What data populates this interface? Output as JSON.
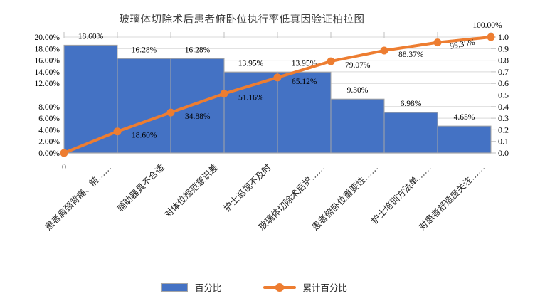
{
  "chart_data": {
    "type": "pareto",
    "title": "玻璃体切除术后患者俯卧位执行率低真因验证柏拉图",
    "categories": [
      "0",
      "患者肩颈背痛、前……",
      "辅助器具不合适",
      "对体位规范意识差",
      "护士巡视不及时",
      "玻璃体切除术后护……",
      "患者俯卧位重要性……",
      "护士培训方法单……",
      "对患者舒适度关注……"
    ],
    "series": [
      {
        "name": "百分比",
        "type": "bar",
        "color": "#4472C4",
        "values": [
          18.6,
          16.28,
          16.28,
          13.95,
          13.95,
          9.3,
          6.98,
          4.65
        ],
        "labels": [
          "18.60%",
          "16.28%",
          "16.28%",
          "13.95%",
          "13.95%",
          "9.30%",
          "6.98%",
          "4.65%"
        ]
      },
      {
        "name": "累计百分比",
        "type": "line",
        "color": "#ED7D31",
        "values": [
          0.0,
          18.6,
          34.88,
          51.16,
          65.12,
          79.07,
          88.37,
          95.35,
          100.0
        ],
        "labels": [
          "",
          "18.60%",
          "34.88%",
          "51.16%",
          "65.12%",
          "79.07%",
          "88.37%",
          "95.35%",
          "100.00%"
        ]
      }
    ],
    "left_axis": {
      "min": 0,
      "max": 20,
      "tick_labels": [
        "20.00%",
        "18.00%",
        "16.00%",
        "14.00%",
        "12.00%",
        "",
        "8.00%",
        "6.00%",
        "4.00%",
        "2.00%",
        "0.00%"
      ]
    },
    "right_axis": {
      "min": 0.0,
      "max": 1.0,
      "tick_labels": [
        "1.0",
        "0.9",
        "0.8",
        "0.7",
        "0.6",
        "0.5",
        "0.4",
        "0.3",
        "0.2",
        "0.1",
        "0.0"
      ]
    },
    "grid": true,
    "legend_position": "bottom",
    "colors": {
      "bar_fill": "#4472C4",
      "bar_border": "#A6A6A6",
      "line": "#ED7D31",
      "gridline": "#D9D9D9",
      "axis_line": "#A6A6A6",
      "tick": "#BFBFBF",
      "label_text": "#000000",
      "title_text": "#404040"
    }
  },
  "legend": {
    "items": [
      {
        "label": "百分比",
        "swatch": "bar-swatch"
      },
      {
        "label": "累计百分比",
        "swatch": "line-marker-swatch"
      }
    ]
  }
}
